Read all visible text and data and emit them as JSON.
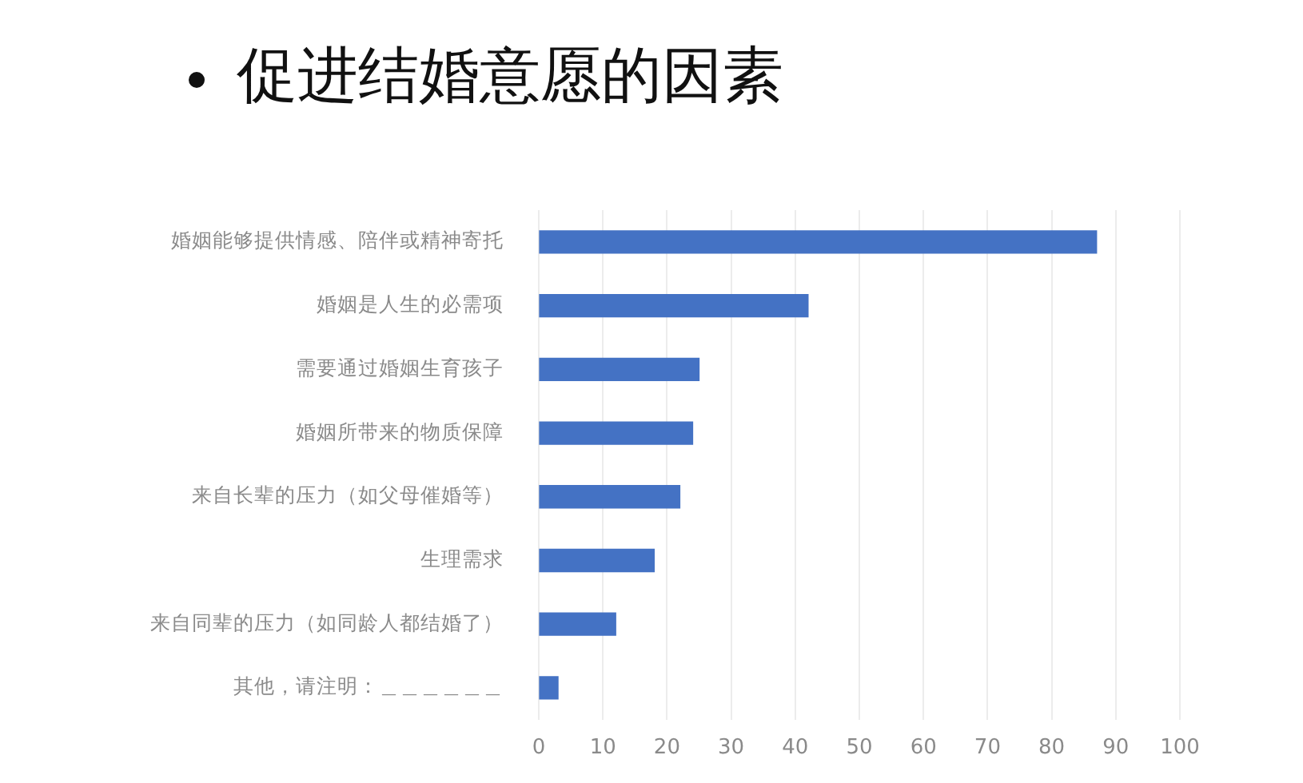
{
  "chart_data": {
    "type": "bar",
    "orientation": "horizontal",
    "title": "促进结婚意愿的因素",
    "categories": [
      "婚姻能够提供情感、陪伴或精神寄托",
      "婚姻是人生的必需项",
      "需要通过婚姻生育孩子",
      "婚姻所带来的物质保障",
      "来自长辈的压力（如父母催婚等）",
      "生理需求",
      "来自同辈的压力（如同龄人都结婚了）",
      "其他，请注明：＿＿＿＿＿＿"
    ],
    "values": [
      87,
      42,
      25,
      24,
      22,
      18,
      12,
      3
    ],
    "color": "#4472c4",
    "xlim": [
      0,
      100
    ],
    "xticks": [
      0,
      10,
      20,
      30,
      40,
      50,
      60,
      70,
      80,
      90,
      100
    ],
    "grid": "x",
    "legend": false
  }
}
